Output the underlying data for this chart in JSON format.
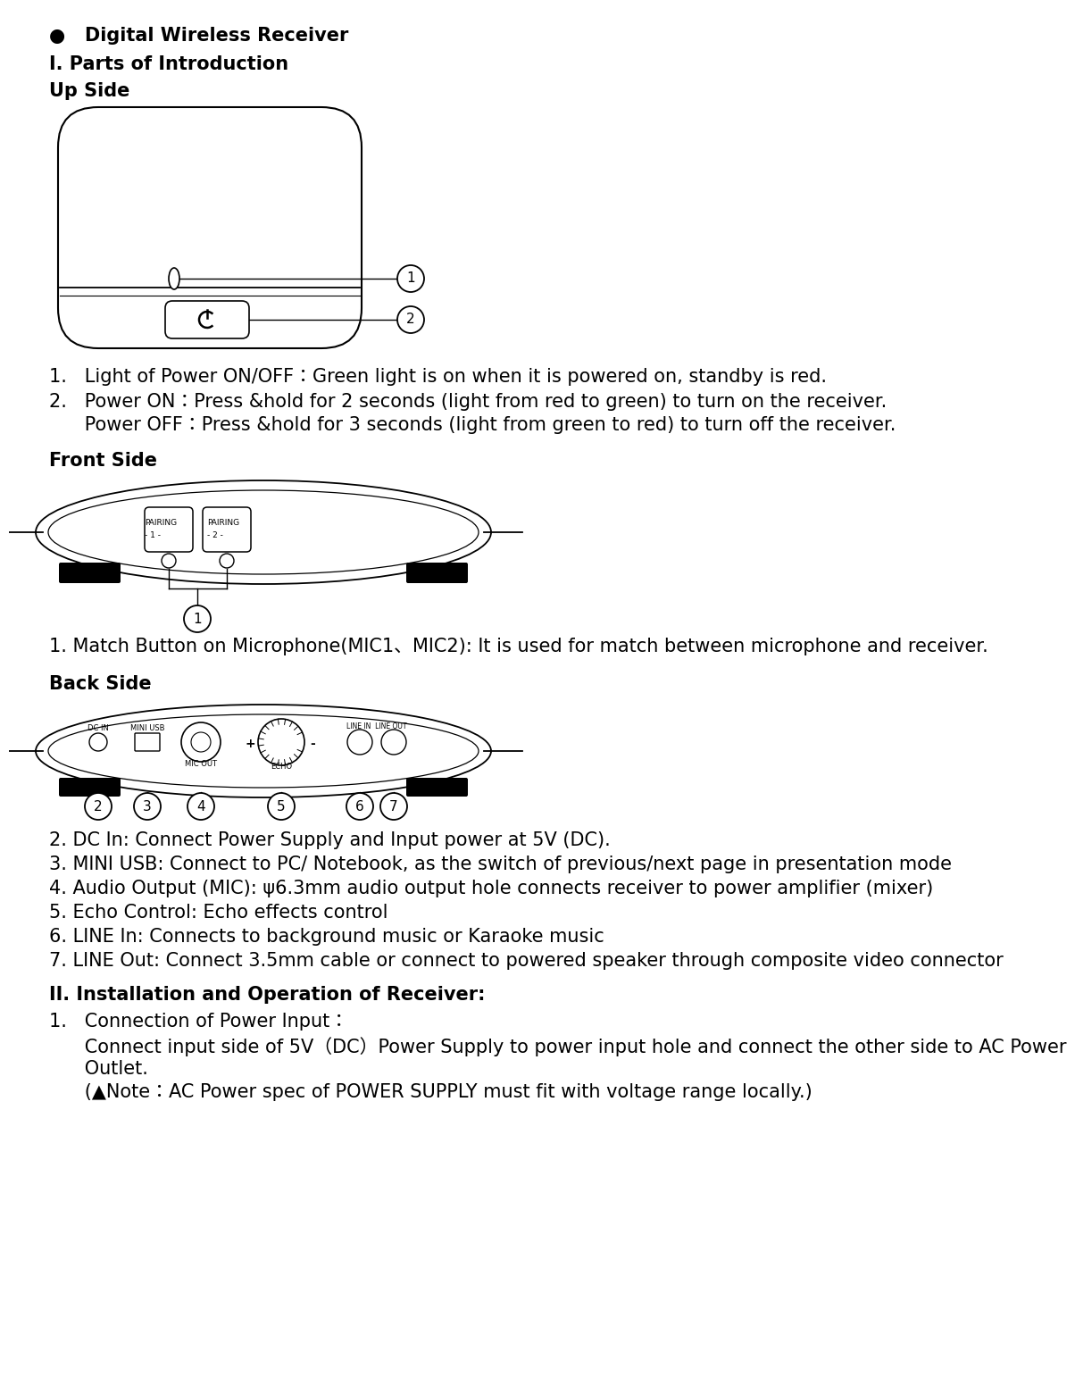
{
  "title_bullet": "●   Digital Wireless Receiver",
  "section1": "I. Parts of Introduction",
  "upside_label": "Up Side",
  "frontside_label": "Front Side",
  "backside_label": "Back Side",
  "section2": "II. Installation and Operation of Receiver:",
  "upside_text1": "1.   Light of Power ON/OFF：Green light is on when it is powered on, standby is red.",
  "upside_text2a": "2.   Power ON：Press &hold for 2 seconds (light from red to green) to turn on the receiver.",
  "upside_text2b": "      Power OFF：Press &hold for 3 seconds (light from green to red) to turn off the receiver.",
  "front_text": "1. Match Button on Microphone(MIC1、MIC2): It is used for match between microphone and receiver.",
  "back_text2": "2. DC In: Connect Power Supply and Input power at 5V (DC).",
  "back_text3": "3. MINI USB: Connect to PC/ Notebook, as the switch of previous/next page in presentation mode",
  "back_text4": "4. Audio Output (MIC): ψ6.3mm audio output hole connects receiver to power amplifier (mixer)",
  "back_text5": "5. Echo Control: Echo effects control",
  "back_text6": "6. LINE In: Connects to background music or Karaoke music",
  "back_text7": "7. LINE Out: Connect 3.5mm cable or connect to powered speaker through composite video connector",
  "inst_text1": "1.   Connection of Power Input：",
  "inst_text2": "      Connect input side of 5V（DC）Power Supply to power input hole and connect the other side to AC Power",
  "inst_text3": "      Outlet.",
  "inst_text4": "      (▲Note：AC Power spec of POWER SUPPLY must fit with voltage range locally.)",
  "bg_color": "#ffffff"
}
